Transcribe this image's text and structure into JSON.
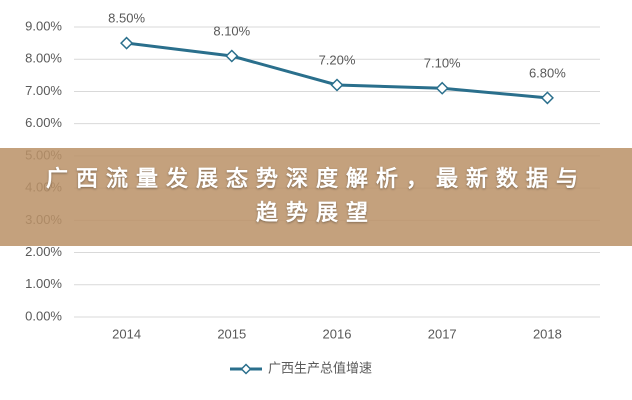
{
  "chart_data": {
    "type": "line",
    "categories": [
      "2014",
      "2015",
      "2016",
      "2017",
      "2018"
    ],
    "series": [
      {
        "name": "广西生产总值增速",
        "color": "#2a6f8c",
        "values": [
          8.5,
          8.1,
          7.2,
          7.1,
          6.8
        ],
        "value_labels": [
          "8.50%",
          "8.10%",
          "7.20%",
          "7.10%",
          "6.80%"
        ]
      }
    ],
    "ylim": [
      0,
      9
    ],
    "yticks": [
      {
        "value": 0,
        "label": "0.00%"
      },
      {
        "value": 1,
        "label": "1.00%"
      },
      {
        "value": 2,
        "label": "2.00%"
      },
      {
        "value": 3,
        "label": "3.00%"
      },
      {
        "value": 4,
        "label": "4.00%"
      },
      {
        "value": 5,
        "label": "5.00%"
      },
      {
        "value": 6,
        "label": "6.00%"
      },
      {
        "value": 7,
        "label": "7.00%"
      },
      {
        "value": 8,
        "label": "8.00%"
      },
      {
        "value": 9,
        "label": "9.00%"
      }
    ],
    "grid": true,
    "legend": "bottom"
  },
  "banner": {
    "title": "广西流量发展态势深度解析，最新数据与趋势展望"
  }
}
